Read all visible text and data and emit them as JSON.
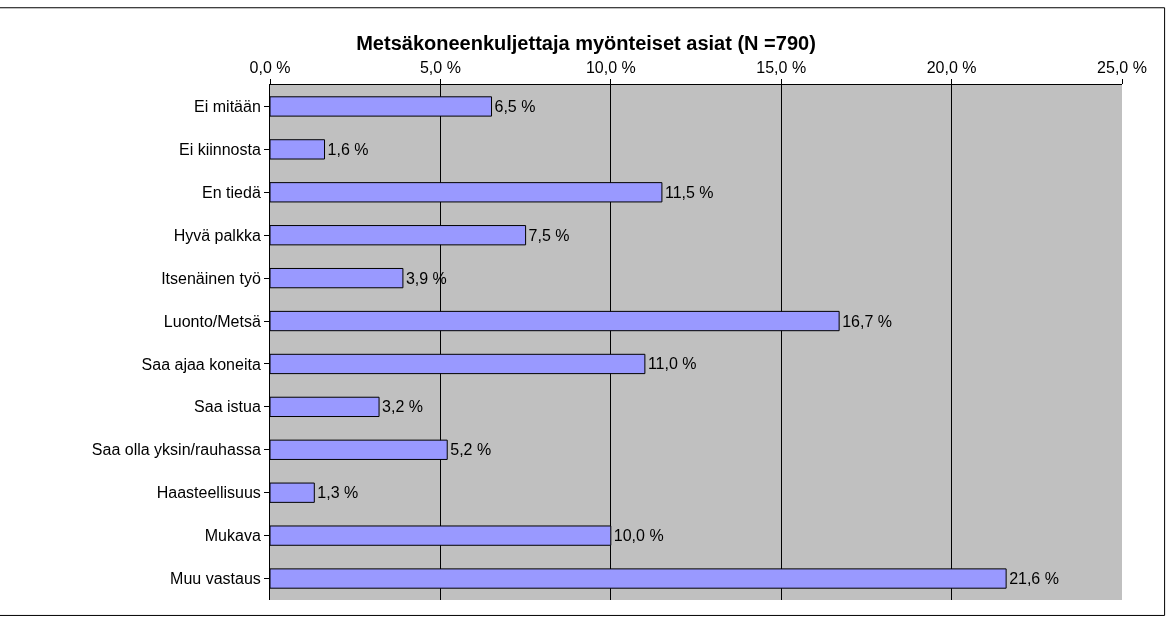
{
  "chart_data": {
    "type": "bar",
    "orientation": "horizontal",
    "title": "Metsäkoneenkuljettaja myönteiset asiat (N =790)",
    "categories": [
      "Ei mitään",
      "Ei kiinnosta",
      "En tiedä",
      "Hyvä palkka",
      "Itsenäinen työ",
      "Luonto/Metsä",
      "Saa ajaa koneita",
      "Saa istua",
      "Saa olla yksin/rauhassa",
      "Haasteellisuus",
      "Mukava",
      "Muu vastaus"
    ],
    "values": [
      6.5,
      1.6,
      11.5,
      7.5,
      3.9,
      16.7,
      11.0,
      3.2,
      5.2,
      1.3,
      10.0,
      21.6
    ],
    "value_labels": [
      "6,5 %",
      "1,6 %",
      "11,5 %",
      "7,5 %",
      "3,9 %",
      "16,7 %",
      "11,0 %",
      "3,2 %",
      "5,2 %",
      "1,3 %",
      "10,0 %",
      "21,6 %"
    ],
    "color": "#9999ff",
    "xlim": [
      0,
      25
    ],
    "xticks": [
      {
        "value": 0,
        "label": "0,0 %"
      },
      {
        "value": 5,
        "label": "5,0 %"
      },
      {
        "value": 10,
        "label": "10,0 %"
      },
      {
        "value": 15,
        "label": "15,0 %"
      },
      {
        "value": 20,
        "label": "20,0 %"
      },
      {
        "value": 25,
        "label": "25,0 %"
      }
    ],
    "grid": "x",
    "legend": false
  }
}
